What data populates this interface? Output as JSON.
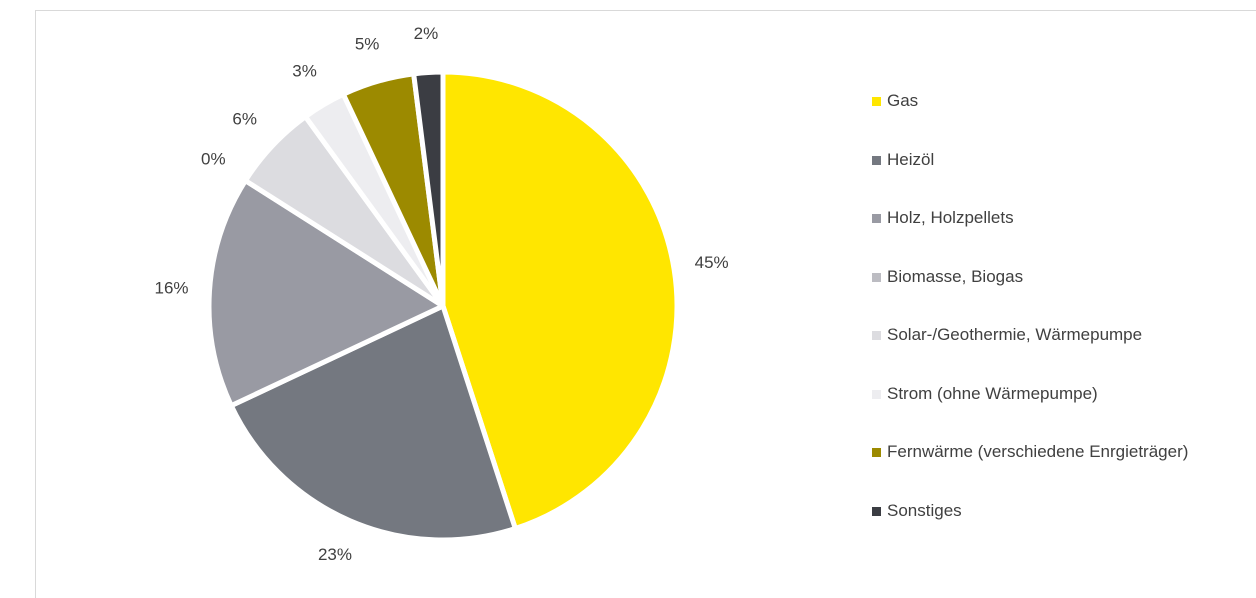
{
  "chart_data": {
    "type": "pie",
    "categories": [
      "Gas",
      "Heizöl",
      "Holz, Holzpellets",
      "Biomasse, Biogas",
      "Solar-/Geothermie, Wärmepumpe",
      "Strom (ohne Wärmepumpe)",
      "Fernwärme (verschiedene Enrgieträger)",
      "Sonstiges"
    ],
    "values": [
      45,
      23,
      16,
      0,
      6,
      3,
      5,
      2
    ],
    "value_labels": [
      "45%",
      "23%",
      "16%",
      "0%",
      "6%",
      "3%",
      "5%",
      "2%"
    ],
    "colors": [
      "#ffe600",
      "#747880",
      "#999aa3",
      "#bcbcc2",
      "#dcdce0",
      "#ededf0",
      "#9c8a00",
      "#3b3d43"
    ],
    "legend": "right"
  }
}
